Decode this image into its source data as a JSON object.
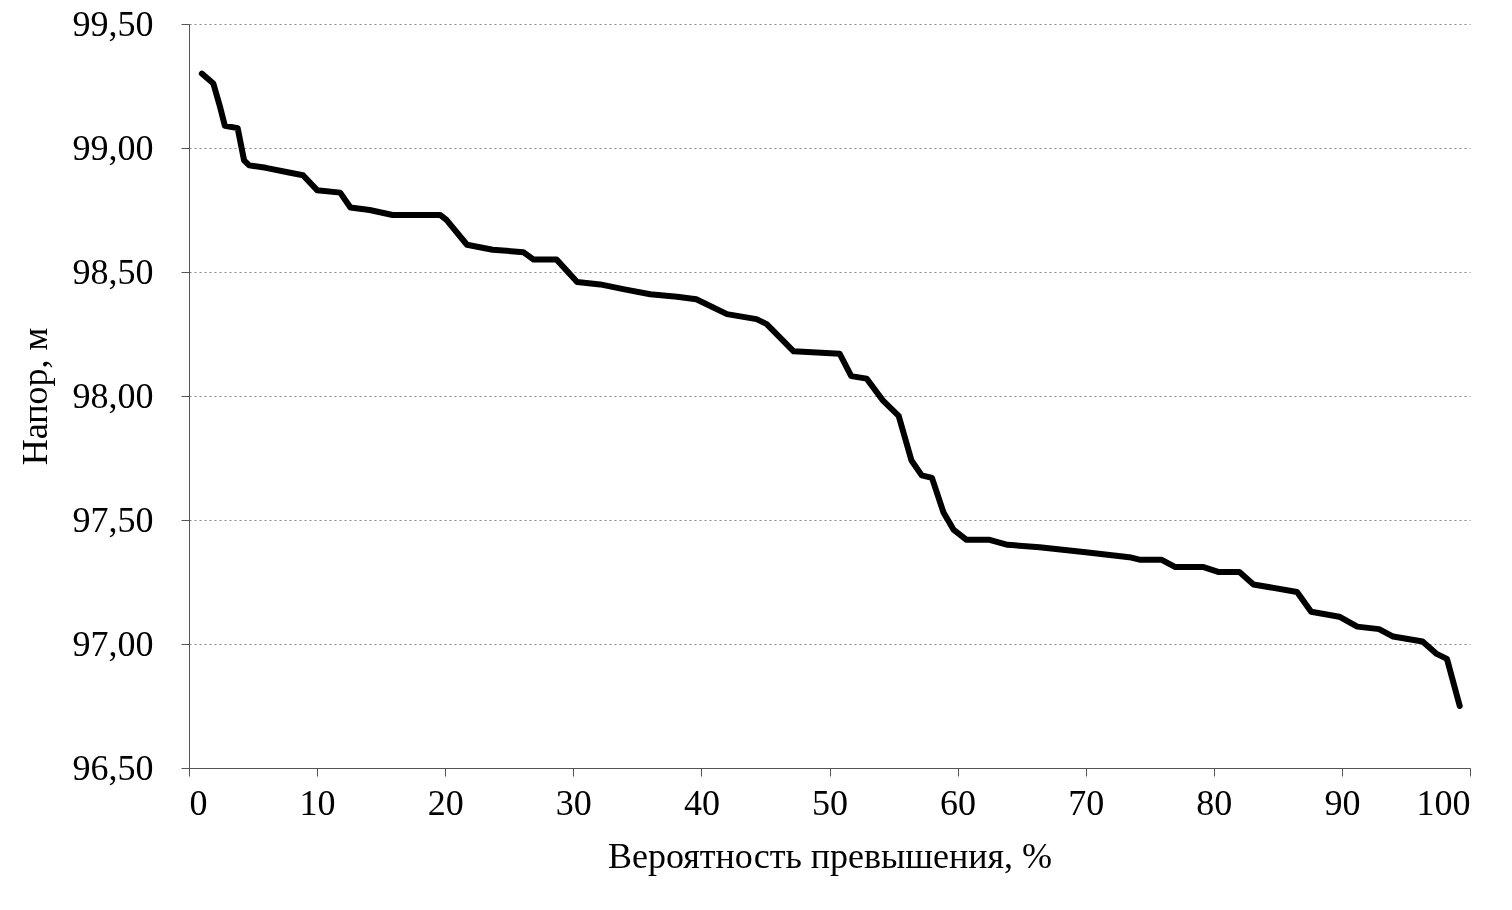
{
  "chart_data": {
    "type": "line",
    "xlabel": "Вероятность превышения, %",
    "ylabel": "Напор, м",
    "x": [
      1.0,
      1.9,
      2.4,
      2.8,
      3.8,
      4.3,
      4.7,
      6.0,
      7.9,
      8.9,
      10.0,
      11.8,
      12.6,
      14.1,
      15.9,
      19.6,
      20.1,
      21.7,
      23.7,
      26.1,
      26.9,
      28.7,
      30.3,
      32.1,
      34.0,
      36.0,
      38.1,
      39.6,
      42.0,
      44.3,
      45.1,
      47.2,
      50.8,
      51.7,
      52.9,
      54.2,
      55.4,
      56.4,
      57.2,
      58.0,
      58.9,
      59.7,
      60.7,
      62.5,
      63.9,
      66.4,
      70.0,
      73.4,
      74.2,
      75.9,
      77.0,
      79.2,
      80.4,
      82.0,
      83.1,
      86.5,
      87.6,
      89.8,
      91.2,
      92.9,
      94.0,
      96.3,
      97.4,
      98.2,
      99.2
    ],
    "series": [
      {
        "color": "#000000",
        "values": [
          99.3,
          99.26,
          99.17,
          99.09,
          99.08,
          98.95,
          98.93,
          98.92,
          98.9,
          98.89,
          98.83,
          98.82,
          98.76,
          98.75,
          98.73,
          98.73,
          98.71,
          98.61,
          98.59,
          98.58,
          98.55,
          98.55,
          98.46,
          98.45,
          98.43,
          98.41,
          98.4,
          98.39,
          98.33,
          98.31,
          98.29,
          98.18,
          98.17,
          98.08,
          98.07,
          97.98,
          97.92,
          97.74,
          97.68,
          97.67,
          97.53,
          97.46,
          97.42,
          97.42,
          97.4,
          97.39,
          97.37,
          97.35,
          97.34,
          97.34,
          97.31,
          97.31,
          97.29,
          97.29,
          97.24,
          97.21,
          97.13,
          97.11,
          97.07,
          97.06,
          97.03,
          97.01,
          96.96,
          96.94,
          96.75
        ]
      }
    ],
    "xlim": [
      0,
      100
    ],
    "xticks": [
      0,
      10,
      20,
      30,
      40,
      50,
      60,
      70,
      80,
      90,
      100
    ],
    "ylim": [
      96.5,
      99.5
    ],
    "yticks": [
      {
        "value": 96.5,
        "label": "96,50"
      },
      {
        "value": 97.0,
        "label": "97,00"
      },
      {
        "value": 97.5,
        "label": "97,50"
      },
      {
        "value": 98.0,
        "label": "98,00"
      },
      {
        "value": 98.5,
        "label": "98,50"
      },
      {
        "value": 99.0,
        "label": "99,00"
      },
      {
        "value": 99.5,
        "label": "99,50"
      }
    ],
    "grid": "y",
    "line_style": "solid"
  }
}
